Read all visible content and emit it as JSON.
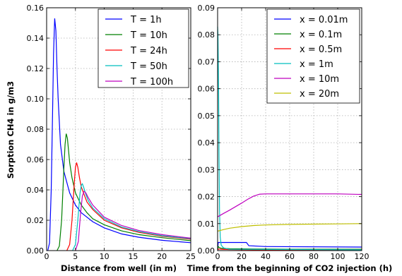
{
  "chart_data": [
    {
      "type": "line",
      "ylabel": "Sorption CH4 in g/m3",
      "xlabel": "Distance from well (in m)",
      "xlim": [
        0,
        25
      ],
      "ylim": [
        0,
        0.16
      ],
      "xticks": [
        "0",
        "5",
        "10",
        "15",
        "20",
        "25"
      ],
      "yticks": [
        "0.00",
        "0.02",
        "0.04",
        "0.06",
        "0.08",
        "0.10",
        "0.12",
        "0.14",
        "0.16"
      ],
      "grid": true,
      "legend": "top-right",
      "series": [
        {
          "name": "T = 1h",
          "color": "#0000ff",
          "x": [
            0.2,
            0.5,
            0.8,
            1.0,
            1.2,
            1.4,
            1.6,
            1.8,
            2.0,
            2.4,
            3,
            4,
            5,
            6,
            8,
            10,
            13,
            16,
            20,
            25
          ],
          "y": [
            0,
            0.005,
            0.04,
            0.085,
            0.13,
            0.153,
            0.145,
            0.12,
            0.1,
            0.07,
            0.052,
            0.038,
            0.03,
            0.025,
            0.019,
            0.015,
            0.011,
            0.0088,
            0.0068,
            0.0052
          ]
        },
        {
          "name": "T = 10h",
          "color": "#008000",
          "x": [
            1.8,
            2.2,
            2.6,
            3.0,
            3.2,
            3.4,
            3.6,
            3.8,
            4.0,
            4.4,
            5,
            6,
            7,
            8,
            10,
            13,
            16,
            20,
            25
          ],
          "y": [
            0,
            0.003,
            0.02,
            0.055,
            0.07,
            0.077,
            0.074,
            0.066,
            0.058,
            0.048,
            0.038,
            0.03,
            0.025,
            0.021,
            0.017,
            0.013,
            0.0105,
            0.0085,
            0.0065
          ]
        },
        {
          "name": "T = 24h",
          "color": "#ff0000",
          "x": [
            3.5,
            4.0,
            4.4,
            4.8,
            5.0,
            5.2,
            5.4,
            5.7,
            6.0,
            7,
            8,
            10,
            13,
            16,
            20,
            25
          ],
          "y": [
            0,
            0.004,
            0.02,
            0.045,
            0.055,
            0.058,
            0.055,
            0.048,
            0.042,
            0.032,
            0.027,
            0.02,
            0.015,
            0.012,
            0.0095,
            0.0075
          ]
        },
        {
          "name": "T = 50h",
          "color": "#00bfbf",
          "x": [
            4.5,
            5.0,
            5.4,
            5.8,
            6.0,
            6.2,
            6.4,
            6.8,
            7.2,
            8,
            10,
            13,
            16,
            20,
            25
          ],
          "y": [
            0,
            0.004,
            0.02,
            0.038,
            0.043,
            0.044,
            0.042,
            0.037,
            0.033,
            0.028,
            0.021,
            0.0155,
            0.0125,
            0.0098,
            0.0078
          ]
        },
        {
          "name": "T = 100h",
          "color": "#bf00bf",
          "x": [
            5.0,
            5.5,
            5.9,
            6.2,
            6.5,
            6.8,
            7.2,
            8,
            10,
            13,
            16,
            20,
            25
          ],
          "y": [
            0,
            0.006,
            0.025,
            0.036,
            0.039,
            0.038,
            0.035,
            0.03,
            0.022,
            0.0165,
            0.0132,
            0.0105,
            0.0082
          ]
        }
      ]
    },
    {
      "type": "line",
      "xlabel": "Time from the beginning of CO2 injection (h)",
      "xlim": [
        0,
        120
      ],
      "ylim": [
        0,
        0.09
      ],
      "xticks": [
        "0",
        "20",
        "40",
        "60",
        "80",
        "100",
        "120"
      ],
      "yticks": [
        "0.00",
        "0.01",
        "0.02",
        "0.03",
        "0.04",
        "0.05",
        "0.06",
        "0.07",
        "0.08",
        "0.09"
      ],
      "grid": true,
      "legend": "top-right",
      "series": [
        {
          "name": "x = 0.01m",
          "color": "#0000ff",
          "x": [
            0,
            0.5,
            1,
            24,
            26,
            40,
            120
          ],
          "y": [
            0,
            0.003,
            0.003,
            0.003,
            0.0018,
            0.0015,
            0.0013
          ]
        },
        {
          "name": "x = 0.1m",
          "color": "#008000",
          "x": [
            0,
            0.3,
            0.6,
            1.2,
            2,
            3,
            5,
            10,
            30,
            60,
            120
          ],
          "y": [
            0.0005,
            0.001,
            0.0015,
            0.0012,
            0.001,
            0.0009,
            0.0008,
            0.0007,
            0.0006,
            0.0005,
            0.0005
          ]
        },
        {
          "name": "x = 0.5m",
          "color": "#ff0000",
          "x": [
            0,
            1,
            3,
            10,
            30,
            120
          ],
          "y": [
            0.0003,
            0.0006,
            0.0005,
            0.0004,
            0.0003,
            0.0003
          ]
        },
        {
          "name": "x = 1m",
          "color": "#00bfbf",
          "x": [
            0,
            0.3,
            0.8,
            1.2,
            1.6,
            2.2,
            3,
            5,
            10,
            120
          ],
          "y": [
            0.083,
            0.08,
            0.06,
            0.035,
            0.015,
            0.005,
            0.002,
            0.001,
            0.0005,
            0.0003
          ]
        },
        {
          "name": "x = 10m",
          "color": "#bf00bf",
          "x": [
            0,
            5,
            10,
            15,
            20,
            25,
            30,
            35,
            40,
            50,
            60,
            80,
            100,
            120
          ],
          "y": [
            0.0125,
            0.0138,
            0.015,
            0.0163,
            0.0176,
            0.019,
            0.0202,
            0.0209,
            0.021,
            0.021,
            0.021,
            0.021,
            0.021,
            0.0208
          ]
        },
        {
          "name": "x = 20m",
          "color": "#bfbf00",
          "x": [
            0,
            5,
            10,
            20,
            30,
            40,
            60,
            80,
            100,
            120
          ],
          "y": [
            0.0072,
            0.0078,
            0.0083,
            0.0089,
            0.0093,
            0.0095,
            0.0097,
            0.0098,
            0.0099,
            0.01
          ]
        }
      ]
    }
  ]
}
